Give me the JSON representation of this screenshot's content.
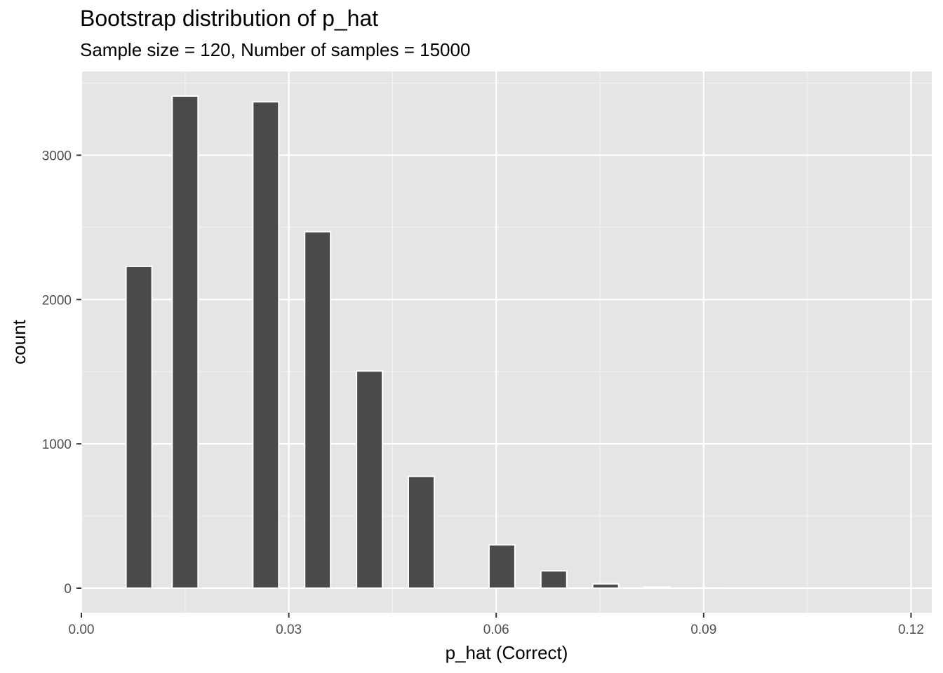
{
  "chart_data": {
    "type": "bar",
    "title": "Bootstrap distribution of p_hat",
    "subtitle": "Sample size = 120, Number of samples = 15000",
    "xlabel": "p_hat (Correct)",
    "ylabel": "count",
    "xlim": [
      0,
      0.123
    ],
    "ylim": [
      -170,
      3580
    ],
    "x_ticks": [
      0.0,
      0.03,
      0.06,
      0.09,
      0.12
    ],
    "x_tick_labels": [
      "0.00",
      "0.03",
      "0.06",
      "0.09",
      "0.12"
    ],
    "y_ticks": [
      0,
      1000,
      2000,
      3000
    ],
    "y_tick_labels": [
      "0",
      "1000",
      "2000",
      "3000"
    ],
    "bin_width": 0.00375,
    "bins": [
      {
        "x": 0.00833,
        "count": 2230
      },
      {
        "x": 0.015,
        "count": 3410
      },
      {
        "x": 0.02667,
        "count": 3370
      },
      {
        "x": 0.03417,
        "count": 2470
      },
      {
        "x": 0.04167,
        "count": 1505
      },
      {
        "x": 0.04917,
        "count": 775
      },
      {
        "x": 0.06083,
        "count": 300
      },
      {
        "x": 0.06833,
        "count": 120
      },
      {
        "x": 0.07583,
        "count": 30
      },
      {
        "x": 0.08333,
        "count": 8
      },
      {
        "x": 0.09083,
        "count": 2
      },
      {
        "x": 0.09833,
        "count": 1
      },
      {
        "x": 0.1175,
        "count": 1
      }
    ],
    "colors": {
      "panel_background": "#e5e5e5",
      "grid_major": "#ffffff",
      "grid_minor": "#f2f2f2",
      "bar_fill": "#4a4a4a",
      "bar_outline": "#ffffff",
      "tick_text": "#4d4d4d",
      "tick_mark": "#333333"
    },
    "grid": true,
    "legend": "none"
  }
}
